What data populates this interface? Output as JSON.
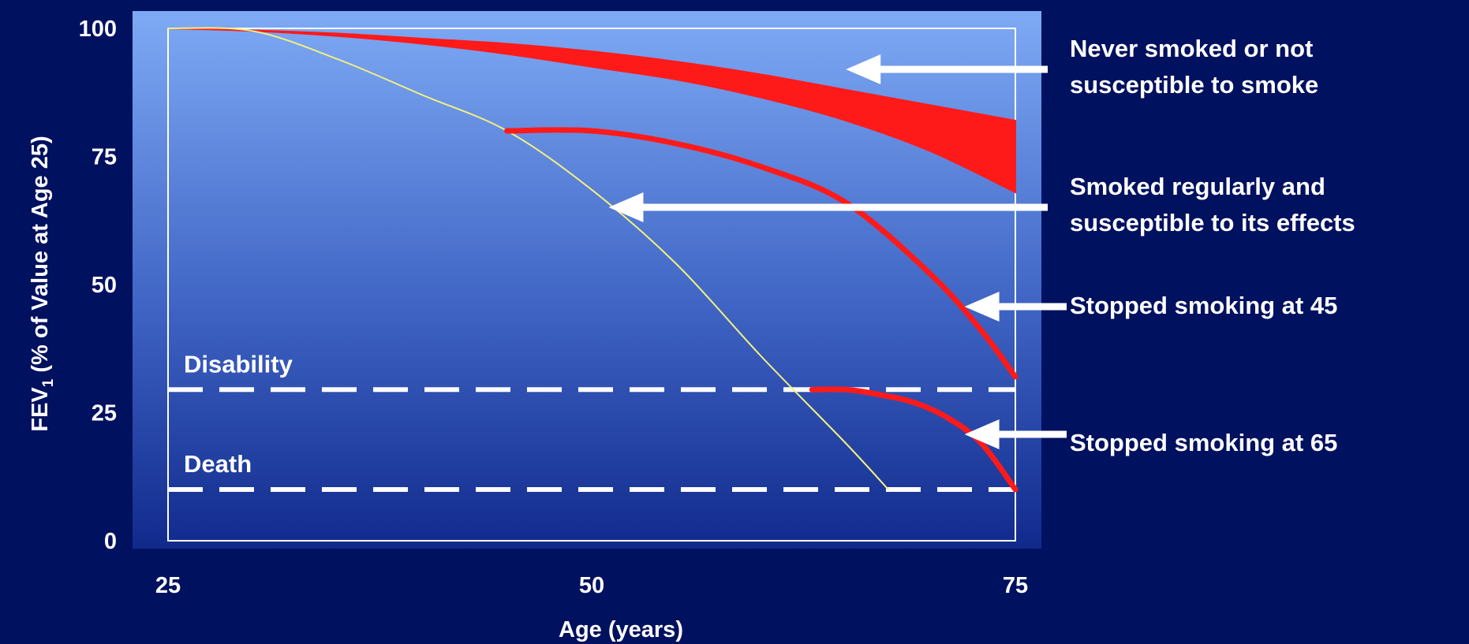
{
  "chart_data": {
    "type": "line",
    "xlabel": "Age (years)",
    "ylabel": "(% of Value at Age 25)",
    "ylabel_prefix": "FEV",
    "ylabel_subscript": "1",
    "xlim": [
      25,
      75
    ],
    "ylim": [
      0,
      100
    ],
    "xticks": [
      "25",
      "50",
      "75"
    ],
    "yticks": [
      "0",
      "25",
      "50",
      "75",
      "100"
    ],
    "grid": false,
    "colors": {
      "background": "#00115f",
      "plot_top": "#7eaaf5",
      "plot_bottom": "#102a8c",
      "red": "#ff1a1a",
      "yellow": "#f3f080",
      "white": "#ffffff"
    },
    "band": {
      "name": "Never smoked or not susceptible to smoke",
      "x": [
        25,
        30,
        35,
        40,
        45,
        50,
        55,
        60,
        65,
        70,
        75
      ],
      "upper": [
        100,
        99.6,
        99,
        98,
        97,
        95.5,
        93.5,
        91,
        88,
        85,
        82
      ],
      "lower": [
        100,
        99.5,
        98.5,
        97,
        95,
        92.5,
        90,
        86.5,
        82,
        76,
        68
      ]
    },
    "series": [
      {
        "name": "Smoked regularly and susceptible to its effects",
        "color": "#f3f080",
        "x": [
          25,
          30,
          35,
          40,
          45,
          50,
          55,
          60,
          65,
          67.5
        ],
        "y": [
          100,
          99.5,
          94,
          87,
          80,
          68.5,
          54,
          36,
          19,
          10
        ]
      },
      {
        "name": "Stopped smoking at 45",
        "color": "#ff1a1a",
        "x": [
          45,
          50,
          55,
          60,
          65,
          70,
          73,
          75
        ],
        "y": [
          80,
          80,
          77.5,
          73,
          66,
          52,
          41,
          32
        ]
      },
      {
        "name": "Stopped smoking at 65",
        "color": "#ff1a1a",
        "x": [
          63,
          65,
          67,
          69,
          71,
          73,
          75
        ],
        "y": [
          29.5,
          29.5,
          28.5,
          27,
          24,
          19,
          10
        ]
      }
    ],
    "thresholds": [
      {
        "label": "Disability",
        "y": 29.5
      },
      {
        "label": "Death",
        "y": 10
      }
    ],
    "annotations": [
      {
        "lines": [
          "Never smoked or not",
          "susceptible to smoke"
        ],
        "target": [
          65,
          92
        ]
      },
      {
        "lines": [
          "Smoked regularly and",
          "susceptible to its effects"
        ],
        "target": [
          51,
          65
        ]
      },
      {
        "lines": [
          "Stopped smoking at 45"
        ],
        "target": [
          72,
          46
        ]
      },
      {
        "lines": [
          "Stopped smoking at 65"
        ],
        "target": [
          72,
          20
        ]
      }
    ]
  }
}
